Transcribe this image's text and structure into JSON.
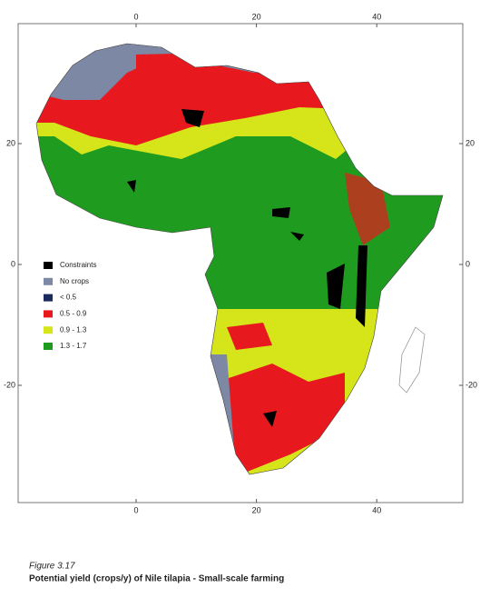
{
  "map": {
    "xticks": [
      0,
      20,
      40
    ],
    "yticks": [
      20,
      0,
      -20
    ],
    "legend": [
      {
        "label": "Constraints",
        "color": "#000000"
      },
      {
        "label": "No crops",
        "color": "#7c88a4"
      },
      {
        "label": "< 0.5",
        "color": "#1b2a5c"
      },
      {
        "label": "0.5 - 0.9",
        "color": "#e8191e"
      },
      {
        "label": "0.9 - 1.3",
        "color": "#d6e41a"
      },
      {
        "label": "1.3 - 1.7",
        "color": "#1f9c1f"
      }
    ]
  },
  "caption": {
    "figure": "Figure 3.17",
    "title": "Potential yield (crops/y) of Nile tilapia - Small-scale farming"
  }
}
